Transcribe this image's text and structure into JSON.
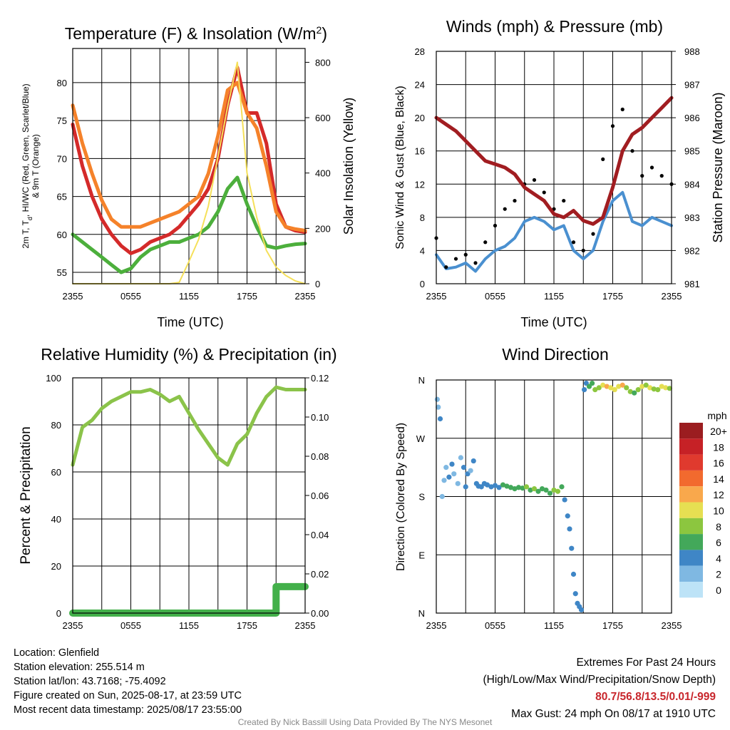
{
  "chart_data": [
    {
      "type": "line",
      "title": "Temperature (F) & Insolation (W/m²)",
      "xlabel": "Time (UTC)",
      "ylabel": "2m T, Td, HI/WC (Red, Green, Scarlet/Blue) & 9m T (Orange)",
      "ylabel_line1": "2m T, T",
      "ylabel_sub": "d",
      "ylabel_line1b": ", HI/WC (Red, Green, Scarlet/Blue)",
      "ylabel_line2": "& 9m T (Orange)",
      "y2label": "Solar Insolation (Yellow)",
      "xticks": [
        "2355",
        "0555",
        "1155",
        "1755",
        "2355"
      ],
      "yticks": [
        55,
        60,
        65,
        70,
        75,
        80
      ],
      "y2ticks": [
        0,
        200,
        400,
        600,
        800
      ],
      "ylim": [
        53.5,
        84.5
      ],
      "y2lim": [
        0,
        850
      ],
      "grid": true,
      "x": [
        0,
        1,
        2,
        3,
        4,
        5,
        6,
        7,
        8,
        9,
        10,
        11,
        12,
        13,
        14,
        15,
        16,
        17,
        18,
        19,
        20,
        21,
        22,
        23,
        24
      ],
      "series": [
        {
          "name": "2m T",
          "color": "#d42a2a",
          "axis": "left",
          "values": [
            74.5,
            69,
            65,
            62,
            60,
            58.5,
            57.5,
            58,
            59,
            59.5,
            60,
            61,
            62.5,
            64,
            66,
            70,
            77,
            82,
            76,
            76,
            72,
            64,
            61,
            60.5,
            60.3
          ]
        },
        {
          "name": "9m T",
          "color": "#f5822a",
          "axis": "left",
          "values": [
            77,
            72,
            68,
            64.5,
            62,
            61,
            61,
            61,
            61.5,
            62,
            62.5,
            63,
            64,
            65,
            68,
            73,
            79,
            80,
            76,
            74,
            69,
            63,
            61,
            60.7,
            60.5
          ]
        },
        {
          "name": "Td",
          "color": "#4caf3c",
          "axis": "left",
          "values": [
            60,
            59,
            58,
            57,
            56,
            55,
            55.5,
            57,
            58,
            58.5,
            59,
            59,
            59.5,
            60,
            61,
            63,
            66,
            67.5,
            64,
            61,
            58.5,
            58.2,
            58.5,
            58.7,
            58.8
          ]
        },
        {
          "name": "Solar Insolation",
          "color": "#f5e05a",
          "axis": "right",
          "values": [
            0,
            0,
            0,
            0,
            0,
            0,
            0,
            0,
            0,
            0,
            0,
            5,
            80,
            160,
            280,
            460,
            640,
            800,
            400,
            240,
            120,
            60,
            30,
            10,
            0
          ]
        }
      ]
    },
    {
      "type": "scatter",
      "title": "Winds (mph) & Pressure (mb)",
      "xlabel": "Time (UTC)",
      "ylabel": "Sonic Wind & Gust (Blue, Black)",
      "y2label": "Station Pressure (Maroon)",
      "xticks": [
        "2355",
        "0555",
        "1155",
        "1755",
        "2355"
      ],
      "yticks": [
        0,
        4,
        8,
        12,
        16,
        20,
        24,
        28
      ],
      "y2ticks": [
        981,
        982,
        983,
        984,
        985,
        986,
        987,
        988
      ],
      "ylim": [
        0,
        28
      ],
      "y2lim": [
        981,
        988
      ],
      "grid": true,
      "x": [
        0,
        1,
        2,
        3,
        4,
        5,
        6,
        7,
        8,
        9,
        10,
        11,
        12,
        13,
        14,
        15,
        16,
        17,
        18,
        19,
        20,
        21,
        22,
        23,
        24
      ],
      "series": [
        {
          "name": "Sonic Wind",
          "color": "#4a90d0",
          "axis": "left",
          "values": [
            3.5,
            1.8,
            2,
            2.5,
            1.5,
            3,
            4,
            4.5,
            5.5,
            7.5,
            8,
            7.5,
            6.5,
            7,
            4,
            3,
            4,
            7.5,
            10,
            11,
            7.5,
            7,
            8,
            7.5,
            7
          ]
        },
        {
          "name": "Gust",
          "color": "#000000",
          "axis": "left",
          "values": [
            5.5,
            2,
            3,
            3.5,
            2.5,
            5,
            7,
            9,
            10,
            12,
            12.5,
            11,
            9,
            10,
            5,
            4,
            6,
            15,
            19,
            21,
            16,
            13,
            14,
            13,
            12
          ]
        },
        {
          "name": "Station Pressure",
          "color": "#a11d21",
          "axis": "right",
          "values": [
            986,
            985.8,
            985.6,
            985.3,
            985.0,
            984.7,
            984.6,
            984.5,
            984.3,
            983.9,
            983.7,
            983.5,
            983.1,
            983.0,
            983.2,
            982.9,
            982.8,
            983.0,
            983.9,
            985.0,
            985.5,
            985.7,
            986.0,
            986.3,
            986.6
          ]
        }
      ]
    },
    {
      "type": "line",
      "title": "Relative Humidity (%) & Precipitation (in)",
      "xlabel": "",
      "ylabel": "Percent & Precipitation",
      "xticks": [
        "2355",
        "0555",
        "1155",
        "1755",
        "2355"
      ],
      "yticks": [
        0,
        20,
        40,
        60,
        80,
        100
      ],
      "y2ticks": [
        "0.00",
        "0.02",
        "0.04",
        "0.06",
        "0.08",
        "0.10",
        "0.12"
      ],
      "ylim": [
        0,
        100
      ],
      "y2lim": [
        0,
        0.12
      ],
      "grid": true,
      "x": [
        0,
        1,
        2,
        3,
        4,
        5,
        6,
        7,
        8,
        9,
        10,
        11,
        12,
        13,
        14,
        15,
        16,
        17,
        18,
        19,
        20,
        21,
        22,
        23,
        24
      ],
      "series": [
        {
          "name": "Relative Humidity",
          "color": "#8bc34a",
          "axis": "left",
          "values": [
            63,
            79,
            82,
            87,
            90,
            92,
            94,
            94,
            95,
            93,
            90,
            92,
            85,
            78,
            72,
            66,
            63,
            72,
            76,
            85,
            92,
            96,
            95,
            95,
            95
          ]
        },
        {
          "name": "Precipitation",
          "color": "#43b04a",
          "axis": "right",
          "values": [
            0,
            0,
            0,
            0,
            0,
            0,
            0,
            0,
            0,
            0,
            0,
            0,
            0,
            0,
            0,
            0,
            0,
            0,
            0,
            0,
            0,
            0.0135,
            0.0135,
            0.0135,
            0.0135
          ]
        }
      ]
    },
    {
      "type": "scatter",
      "title": "Wind Direction",
      "ylabel": "Direction (Colored By Speed)",
      "xticks": [
        "2355",
        "0555",
        "1155",
        "1755",
        "2355"
      ],
      "yticks": [
        "N",
        "E",
        "S",
        "W",
        "N"
      ],
      "ylim": [
        0,
        360
      ],
      "grid": true,
      "legend": {
        "title": "mph",
        "labels": [
          "20+",
          "18",
          "16",
          "14",
          "12",
          "10",
          "8",
          "6",
          "4",
          "2",
          "0"
        ],
        "colors": [
          "#9b1d20",
          "#c62126",
          "#e03a2e",
          "#f26a2e",
          "#f9a84c",
          "#e6df52",
          "#8cc63f",
          "#43a85a",
          "#3f86c6",
          "#7fb8e2",
          "#bde3f7"
        ],
        "placement": "right"
      },
      "points": [
        [
          0.1,
          330,
          2
        ],
        [
          0.2,
          318,
          2
        ],
        [
          0.4,
          300,
          3
        ],
        [
          0.6,
          180,
          2
        ],
        [
          0.8,
          205,
          2
        ],
        [
          1.0,
          225,
          2
        ],
        [
          1.3,
          210,
          3
        ],
        [
          1.6,
          230,
          3
        ],
        [
          1.8,
          215,
          2
        ],
        [
          2.2,
          200,
          2
        ],
        [
          2.5,
          240,
          2
        ],
        [
          2.8,
          225,
          3
        ],
        [
          3.0,
          195,
          3
        ],
        [
          3.2,
          215,
          4
        ],
        [
          3.5,
          220,
          2
        ],
        [
          3.8,
          235,
          3
        ],
        [
          4.1,
          200,
          4
        ],
        [
          4.3,
          196,
          4
        ],
        [
          4.6,
          195,
          4
        ],
        [
          4.9,
          200,
          4
        ],
        [
          5.2,
          198,
          4
        ],
        [
          5.6,
          195,
          4
        ],
        [
          6.0,
          197,
          4
        ],
        [
          6.4,
          194,
          4
        ],
        [
          6.8,
          198,
          5
        ],
        [
          7.2,
          196,
          5
        ],
        [
          7.6,
          194,
          6
        ],
        [
          8.0,
          192,
          6
        ],
        [
          8.4,
          194,
          6
        ],
        [
          8.8,
          193,
          6
        ],
        [
          9.2,
          195,
          7
        ],
        [
          9.6,
          190,
          6
        ],
        [
          10.0,
          192,
          7
        ],
        [
          10.4,
          188,
          6
        ],
        [
          10.8,
          192,
          5
        ],
        [
          11.2,
          190,
          5
        ],
        [
          11.6,
          185,
          6
        ],
        [
          12.0,
          190,
          7
        ],
        [
          12.4,
          188,
          7
        ],
        [
          12.8,
          195,
          6
        ],
        [
          13.1,
          175,
          4
        ],
        [
          13.4,
          150,
          4
        ],
        [
          13.6,
          130,
          4
        ],
        [
          13.8,
          100,
          3
        ],
        [
          14.0,
          60,
          4
        ],
        [
          14.2,
          30,
          4
        ],
        [
          14.4,
          15,
          4
        ],
        [
          14.6,
          10,
          4
        ],
        [
          14.8,
          5,
          3
        ],
        [
          15.1,
          345,
          3
        ],
        [
          15.3,
          355,
          4
        ],
        [
          15.6,
          350,
          5
        ],
        [
          15.9,
          355,
          6
        ],
        [
          16.2,
          345,
          7
        ],
        [
          16.6,
          348,
          8
        ],
        [
          17.0,
          352,
          10
        ],
        [
          17.4,
          350,
          11
        ],
        [
          17.8,
          348,
          10
        ],
        [
          18.2,
          345,
          9
        ],
        [
          18.6,
          350,
          10
        ],
        [
          19.0,
          352,
          11
        ],
        [
          19.4,
          348,
          8
        ],
        [
          19.8,
          342,
          7
        ],
        [
          20.2,
          340,
          6
        ],
        [
          20.6,
          345,
          8
        ],
        [
          21.0,
          350,
          9
        ],
        [
          21.4,
          352,
          8
        ],
        [
          21.8,
          348,
          10
        ],
        [
          22.2,
          346,
          7
        ],
        [
          22.6,
          345,
          8
        ],
        [
          23.0,
          350,
          9
        ],
        [
          23.4,
          348,
          10
        ],
        [
          23.8,
          347,
          8
        ]
      ]
    }
  ],
  "info": {
    "location": "Location: Glenfield",
    "elevation": "Station elevation: 255.514 m",
    "latlon": "Station lat/lon: 43.7168; -75.4092",
    "created": "Figure created on Sun, 2025-08-17, at 23:59 UTC",
    "recent": "Most recent data timestamp: 2025/08/17 23:55:00",
    "extremes_title": "Extremes For Past 24 Hours",
    "extremes_subtitle": "(High/Low/Max Wind/Precipitation/Snow Depth)",
    "extremes_values": "80.7/56.8/13.5/0.01/-999",
    "max_gust": "Max Gust: 24 mph On 08/17 at 1910 UTC",
    "credit": "Created By Nick Bassill Using Data Provided By The NYS Mesonet"
  }
}
